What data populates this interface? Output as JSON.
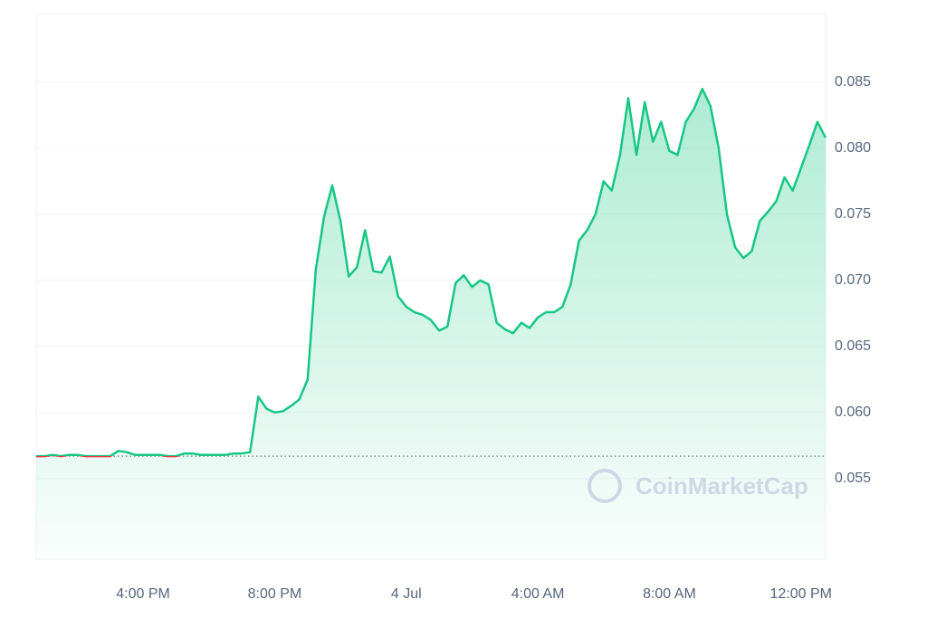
{
  "chart_data": {
    "type": "line",
    "watermark": "CoinMarketCap",
    "categories": [
      null,
      null,
      null,
      null,
      null,
      null,
      null,
      null,
      null,
      null,
      null,
      null,
      null,
      "4:00 PM",
      null,
      null,
      null,
      null,
      null,
      null,
      null,
      null,
      null,
      null,
      null,
      null,
      null,
      null,
      null,
      "8:00 PM",
      null,
      null,
      null,
      null,
      null,
      null,
      null,
      null,
      null,
      null,
      null,
      null,
      null,
      null,
      null,
      "4 Jul",
      null,
      null,
      null,
      null,
      null,
      null,
      null,
      null,
      null,
      null,
      null,
      null,
      null,
      null,
      null,
      "4:00 AM",
      null,
      null,
      null,
      null,
      null,
      null,
      null,
      null,
      null,
      null,
      null,
      null,
      null,
      null,
      null,
      "8:00 AM",
      null,
      null,
      null,
      null,
      null,
      null,
      null,
      null,
      null,
      null,
      null,
      null,
      null,
      null,
      null,
      "12:00 PM",
      null,
      null,
      null
    ],
    "series": [
      {
        "color": "#16c784",
        "below_color": "#ea3943",
        "values": [
          0.0567,
          0.0567,
          0.0568,
          0.0567,
          0.0568,
          0.0568,
          0.0567,
          0.0567,
          0.0567,
          0.0567,
          0.0571,
          0.057,
          0.0568,
          0.0568,
          0.0568,
          0.0568,
          0.0567,
          0.0567,
          0.0569,
          0.0569,
          0.0568,
          0.0568,
          0.0568,
          0.0568,
          0.0569,
          0.0569,
          0.057,
          0.0612,
          0.0603,
          0.06,
          0.0601,
          0.0605,
          0.061,
          0.0625,
          0.0708,
          0.0748,
          0.0772,
          0.0745,
          0.0703,
          0.071,
          0.0738,
          0.0707,
          0.0706,
          0.0718,
          0.0688,
          0.068,
          0.0676,
          0.0674,
          0.067,
          0.0662,
          0.0665,
          0.0698,
          0.0704,
          0.0695,
          0.07,
          0.0697,
          0.0668,
          0.0663,
          0.066,
          0.0668,
          0.0664,
          0.0672,
          0.0676,
          0.0676,
          0.068,
          0.0697,
          0.073,
          0.0738,
          0.075,
          0.0775,
          0.0768,
          0.0795,
          0.0838,
          0.0795,
          0.0835,
          0.0805,
          0.082,
          0.0798,
          0.0795,
          0.082,
          0.083,
          0.0845,
          0.0832,
          0.08,
          0.075,
          0.0725,
          0.0717,
          0.0722,
          0.0745,
          0.0752,
          0.076,
          0.0778,
          0.0768,
          0.0785,
          0.0802,
          0.082,
          0.0808
        ]
      }
    ],
    "baseline": 0.0567,
    "ylim": [
      0.0489,
      0.0902
    ],
    "yticks": [
      0.055,
      {
        "value": 0.06,
        "label": "0.060"
      },
      0.065,
      {
        "value": 0.07,
        "label": "0.070"
      },
      0.075,
      {
        "value": 0.08,
        "label": "0.080"
      },
      0.085
    ],
    "grid": true
  }
}
